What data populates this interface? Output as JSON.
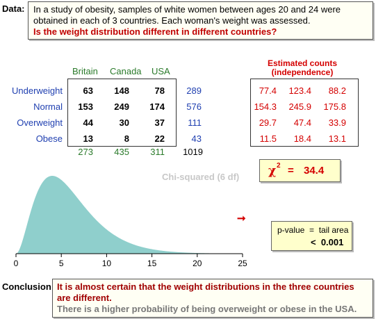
{
  "intro": {
    "label": "Data:",
    "text1": "In a study of obesity, samples of white women between ages 20 and 24 were",
    "text2": "obtained in each of 3 countries. Each woman's weight was assessed.",
    "question": "Is the weight distribution different in different countries?"
  },
  "table": {
    "columns": [
      "Britain",
      "Canada",
      "USA"
    ],
    "rows": [
      {
        "label": "Underweight",
        "values": [
          "63",
          "148",
          "78"
        ],
        "total": "289"
      },
      {
        "label": "Normal",
        "values": [
          "153",
          "249",
          "174"
        ],
        "total": "576"
      },
      {
        "label": "Overweight",
        "values": [
          "44",
          "30",
          "37"
        ],
        "total": "111"
      },
      {
        "label": "Obese",
        "values": [
          "13",
          "8",
          "22"
        ],
        "total": "43"
      }
    ],
    "column_totals": [
      "273",
      "435",
      "311"
    ],
    "grand_total": "1019"
  },
  "expected": {
    "title1": "Estimated counts",
    "title2": "(independence)",
    "rows": [
      [
        "77.4",
        "123.4",
        "88.2"
      ],
      [
        "154.3",
        "245.9",
        "175.8"
      ],
      [
        "29.7",
        "47.4",
        "33.9"
      ],
      [
        "11.5",
        "18.4",
        "13.1"
      ]
    ]
  },
  "chisq": {
    "symbol": "χ",
    "superscript": "2",
    "equals": "=",
    "value": "34.4"
  },
  "distribution": {
    "label": "Chi-squared (6 df)",
    "arrow": "➞"
  },
  "pvalue": {
    "line1": "p-value  =  tail area",
    "line2": "<  0.001"
  },
  "conclusion": {
    "label": "Conclusion:",
    "main": "It is almost certain that the weight distributions in the three countries are different.",
    "sub": "There is a higher probability of being overweight or obese in the USA."
  },
  "chart_data": {
    "type": "area",
    "df": 6,
    "xlim": [
      0,
      25
    ],
    "xticks": [
      "0",
      "5",
      "10",
      "15",
      "20",
      "25"
    ],
    "fill_color": "#8fcfcc"
  },
  "colors": {
    "accent_red": "#d40000",
    "row_blue": "#1f3fb0",
    "col_green": "#2a7a2a",
    "box_fill": "#ffffcc"
  }
}
